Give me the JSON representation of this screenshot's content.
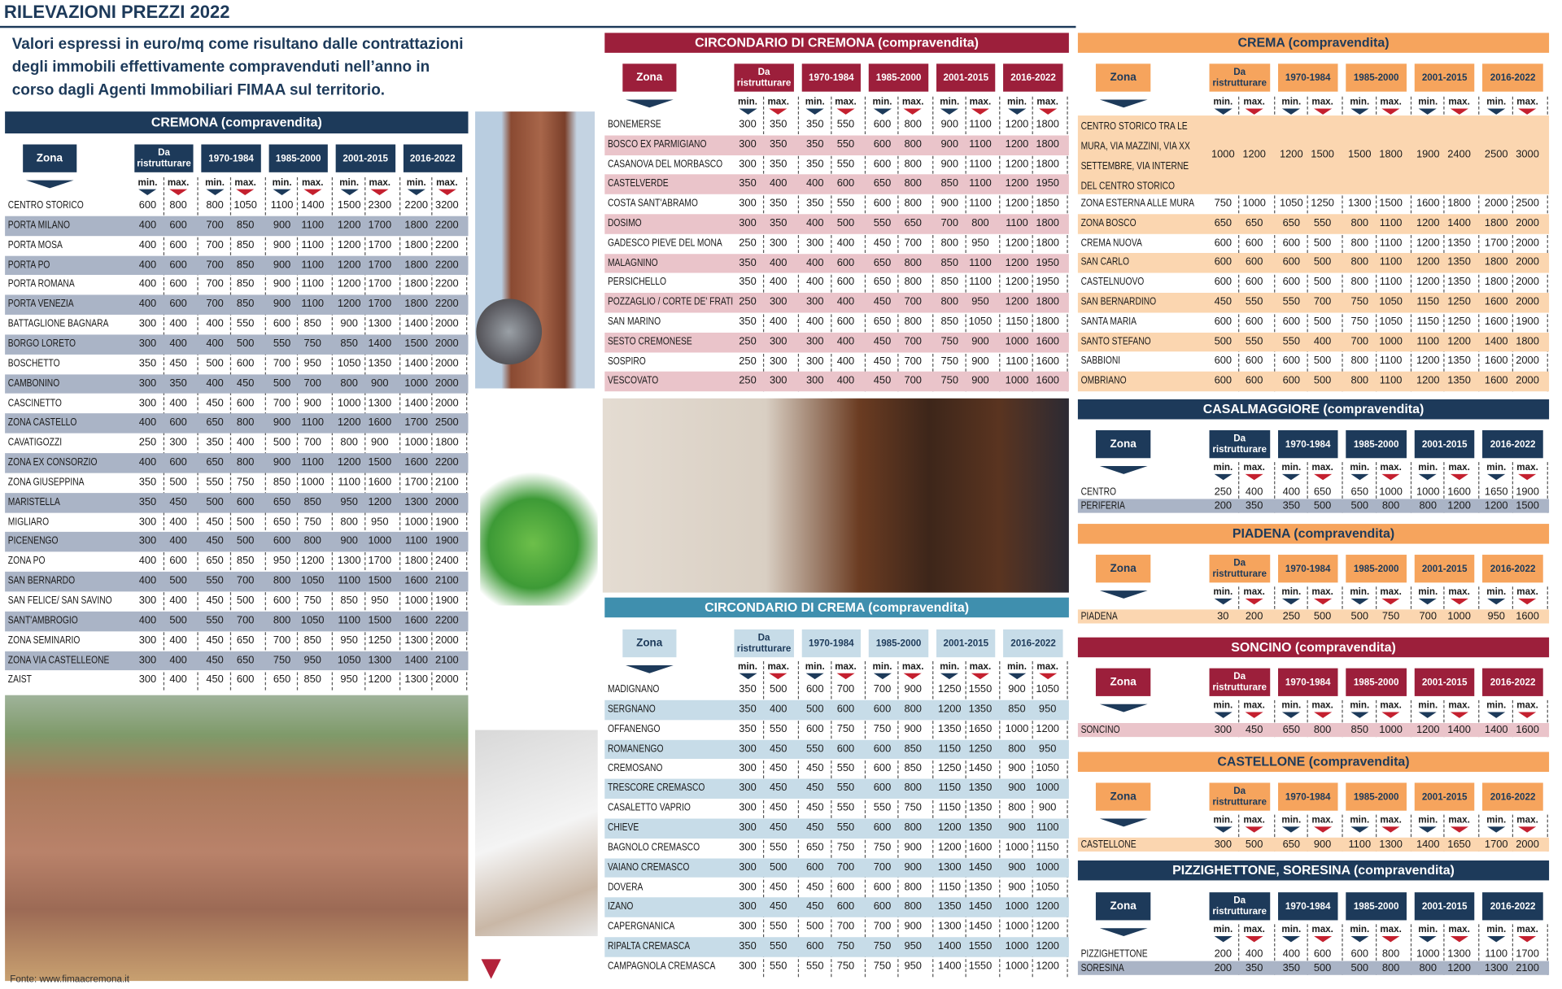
{
  "header": {
    "title": "RILEVAZIONI PREZZI 2022",
    "intro": "Valori espressi in euro/mq come risultano dalle contrattazioni degli immobili effettivamente compravenduti nell’anno in corso dagli Agenti Immobiliari FIMAA sul territorio."
  },
  "columns": {
    "zona": "Zona",
    "periods": [
      "Da ristrutturare",
      "1970-1984",
      "1985-2000",
      "2001-2015",
      "2016-2022"
    ],
    "min": "min.",
    "max": "max."
  },
  "tables": [
    {
      "title": "CREMONA (compravendita)",
      "rows": [
        [
          "CENTRO STORICO",
          600,
          800,
          800,
          1050,
          1100,
          1400,
          1500,
          2300,
          2200,
          3200
        ],
        [
          "PORTA MILANO",
          400,
          600,
          700,
          850,
          900,
          1100,
          1200,
          1700,
          1800,
          2200
        ],
        [
          "PORTA MOSA",
          400,
          600,
          700,
          850,
          900,
          1100,
          1200,
          1700,
          1800,
          2200
        ],
        [
          "PORTA PO",
          400,
          600,
          700,
          850,
          900,
          1100,
          1200,
          1700,
          1800,
          2200
        ],
        [
          "PORTA ROMANA",
          400,
          600,
          700,
          850,
          900,
          1100,
          1200,
          1700,
          1800,
          2200
        ],
        [
          "PORTA VENEZIA",
          400,
          600,
          700,
          850,
          900,
          1100,
          1200,
          1700,
          1800,
          2200
        ],
        [
          "BATTAGLIONE BAGNARA",
          300,
          400,
          400,
          550,
          600,
          850,
          900,
          1300,
          1400,
          2000
        ],
        [
          "BORGO LORETO",
          300,
          400,
          400,
          500,
          550,
          750,
          850,
          1400,
          1500,
          2000
        ],
        [
          "BOSCHETTO",
          350,
          450,
          500,
          600,
          700,
          950,
          1050,
          1350,
          1400,
          2000
        ],
        [
          "CAMBONINO",
          300,
          350,
          400,
          450,
          500,
          700,
          800,
          900,
          1000,
          2000
        ],
        [
          "CASCINETTO",
          300,
          400,
          450,
          600,
          700,
          900,
          1000,
          1300,
          1400,
          2000
        ],
        [
          "ZONA CASTELLO",
          400,
          600,
          650,
          800,
          900,
          1100,
          1200,
          1600,
          1700,
          2500
        ],
        [
          "CAVATIGOZZI",
          250,
          300,
          350,
          400,
          500,
          700,
          800,
          900,
          1000,
          1800
        ],
        [
          "ZONA EX CONSORZIO",
          400,
          600,
          650,
          800,
          900,
          1100,
          1200,
          1500,
          1600,
          2200
        ],
        [
          "ZONA GIUSEPPINA",
          350,
          500,
          550,
          750,
          850,
          1000,
          1100,
          1600,
          1700,
          2100
        ],
        [
          "MARISTELLA",
          350,
          450,
          500,
          600,
          650,
          850,
          950,
          1200,
          1300,
          2000
        ],
        [
          "MIGLIARO",
          300,
          400,
          450,
          500,
          650,
          750,
          800,
          950,
          1000,
          1900
        ],
        [
          "PICENENGO",
          300,
          400,
          450,
          500,
          600,
          800,
          900,
          1000,
          1100,
          1900
        ],
        [
          "ZONA PO",
          400,
          600,
          650,
          850,
          950,
          1200,
          1300,
          1700,
          1800,
          2400
        ],
        [
          "SAN BERNARDO",
          400,
          500,
          550,
          700,
          800,
          1050,
          1100,
          1500,
          1600,
          2100
        ],
        [
          "SAN FELICE/ SAN SAVINO",
          300,
          400,
          450,
          500,
          600,
          750,
          850,
          950,
          1000,
          1900
        ],
        [
          "SANT'AMBROGIO",
          400,
          500,
          550,
          700,
          800,
          1050,
          1100,
          1500,
          1600,
          2200
        ],
        [
          "ZONA SEMINARIO",
          300,
          400,
          450,
          650,
          700,
          850,
          950,
          1250,
          1300,
          2000
        ],
        [
          "ZONA VIA CASTELLEONE",
          300,
          400,
          450,
          650,
          750,
          950,
          1050,
          1300,
          1400,
          2100
        ],
        [
          "ZAIST",
          300,
          400,
          450,
          600,
          650,
          850,
          950,
          1200,
          1300,
          2000
        ]
      ]
    },
    {
      "title": "CIRCONDARIO DI CREMONA (compravendita)",
      "rows": [
        [
          "BONEMERSE",
          300,
          350,
          350,
          550,
          600,
          800,
          900,
          1100,
          1200,
          1800
        ],
        [
          "BOSCO EX PARMIGIANO",
          300,
          350,
          350,
          550,
          600,
          800,
          900,
          1100,
          1200,
          1800
        ],
        [
          "CASANOVA DEL MORBASCO",
          300,
          350,
          350,
          550,
          600,
          800,
          900,
          1100,
          1200,
          1800
        ],
        [
          "CASTELVERDE",
          350,
          400,
          400,
          600,
          650,
          800,
          850,
          1100,
          1200,
          1950
        ],
        [
          "COSTA SANT'ABRAMO",
          300,
          350,
          350,
          550,
          600,
          800,
          900,
          1100,
          1200,
          1850
        ],
        [
          "DOSIMO",
          300,
          350,
          400,
          500,
          550,
          650,
          700,
          800,
          1100,
          1800
        ],
        [
          "GADESCO PIEVE DEL MONA",
          250,
          300,
          300,
          400,
          450,
          700,
          800,
          950,
          1200,
          1800
        ],
        [
          "MALAGNINO",
          350,
          400,
          400,
          600,
          650,
          800,
          850,
          1100,
          1200,
          1950
        ],
        [
          "PERSICHELLO",
          350,
          400,
          400,
          600,
          650,
          800,
          850,
          1100,
          1200,
          1950
        ],
        [
          "POZZAGLIO / CORTE DE' FRATI",
          250,
          300,
          300,
          400,
          450,
          700,
          800,
          950,
          1200,
          1800
        ],
        [
          "SAN MARINO",
          350,
          400,
          400,
          600,
          650,
          800,
          850,
          1050,
          1150,
          1800
        ],
        [
          "SESTO CREMONESE",
          250,
          300,
          300,
          400,
          450,
          700,
          750,
          900,
          1000,
          1600
        ],
        [
          "SOSPIRO",
          250,
          300,
          300,
          400,
          450,
          700,
          750,
          900,
          1100,
          1600
        ],
        [
          "VESCOVATO",
          250,
          300,
          300,
          400,
          450,
          700,
          750,
          900,
          1000,
          1600
        ]
      ]
    },
    {
      "title": "CIRCONDARIO DI CREMA (compravendita)",
      "rows": [
        [
          "MADIGNANO",
          350,
          500,
          600,
          700,
          700,
          900,
          1250,
          1550,
          900,
          1050
        ],
        [
          "SERGNANO",
          350,
          400,
          500,
          600,
          600,
          800,
          1200,
          1350,
          850,
          950
        ],
        [
          "OFFANENGO",
          350,
          550,
          600,
          750,
          750,
          900,
          1350,
          1650,
          1000,
          1200
        ],
        [
          "ROMANENGO",
          300,
          450,
          550,
          600,
          600,
          850,
          1150,
          1250,
          800,
          950
        ],
        [
          "CREMOSANO",
          300,
          450,
          450,
          550,
          600,
          850,
          1250,
          1450,
          900,
          1050
        ],
        [
          "TRESCORE CREMASCO",
          300,
          450,
          450,
          550,
          600,
          800,
          1150,
          1350,
          900,
          1000
        ],
        [
          "CASALETTO VAPRIO",
          300,
          450,
          450,
          550,
          550,
          750,
          1150,
          1350,
          800,
          900
        ],
        [
          "CHIEVE",
          300,
          450,
          450,
          550,
          600,
          800,
          1200,
          1350,
          900,
          1100
        ],
        [
          "BAGNOLO CREMASCO",
          300,
          550,
          650,
          750,
          750,
          900,
          1200,
          1600,
          1000,
          1150
        ],
        [
          "VAIANO CREMASCO",
          300,
          500,
          600,
          700,
          700,
          900,
          1300,
          1450,
          900,
          1000
        ],
        [
          "DOVERA",
          300,
          450,
          450,
          600,
          600,
          800,
          1150,
          1350,
          900,
          1050
        ],
        [
          "IZANO",
          300,
          450,
          450,
          600,
          600,
          800,
          1350,
          1450,
          1000,
          1200
        ],
        [
          "CAPERGNANICA",
          300,
          550,
          500,
          700,
          700,
          900,
          1300,
          1450,
          1000,
          1200
        ],
        [
          "RIPALTA CREMASCA",
          350,
          550,
          600,
          750,
          750,
          950,
          1400,
          1550,
          1000,
          1200
        ],
        [
          "CAMPAGNOLA CREMASCA",
          300,
          550,
          550,
          750,
          750,
          950,
          1400,
          1550,
          1000,
          1200
        ]
      ]
    },
    {
      "title": "CREMA (compravendita)",
      "rows": [
        [
          "CENTRO STORICO TRA LE MURA, VIA MAZZINI, VIA XX SETTEMBRE, VIA INTERNE DEL CENTRO STORICO",
          1000,
          1200,
          1200,
          1500,
          1500,
          1800,
          1900,
          2400,
          2500,
          3000
        ],
        [
          "ZONA ESTERNA ALLE MURA",
          750,
          1000,
          1050,
          1250,
          1300,
          1500,
          1600,
          1800,
          2000,
          2500
        ],
        [
          "ZONA BOSCO",
          650,
          650,
          650,
          550,
          800,
          1100,
          1200,
          1400,
          1800,
          2000
        ],
        [
          "CREMA NUOVA",
          600,
          600,
          600,
          500,
          800,
          1100,
          1200,
          1350,
          1700,
          2000
        ],
        [
          "SAN CARLO",
          600,
          600,
          600,
          500,
          800,
          1100,
          1200,
          1350,
          1800,
          2000
        ],
        [
          "CASTELNUOVO",
          600,
          600,
          600,
          500,
          800,
          1100,
          1200,
          1350,
          1800,
          2000
        ],
        [
          "SAN BERNARDINO",
          450,
          550,
          550,
          700,
          750,
          1050,
          1150,
          1250,
          1600,
          2000
        ],
        [
          "SANTA MARIA",
          600,
          600,
          600,
          500,
          750,
          1050,
          1150,
          1250,
          1600,
          1900
        ],
        [
          "SANTO STEFANO",
          500,
          550,
          550,
          400,
          700,
          1000,
          1100,
          1200,
          1400,
          1800
        ],
        [
          "SABBIONI",
          600,
          600,
          600,
          500,
          800,
          1100,
          1200,
          1350,
          1600,
          2000
        ],
        [
          "OMBRIANO",
          600,
          600,
          600,
          500,
          800,
          1100,
          1200,
          1350,
          1600,
          2000
        ]
      ]
    },
    {
      "title": "CASALMAGGIORE (compravendita)",
      "rows": [
        [
          "CENTRO",
          250,
          400,
          400,
          650,
          650,
          1000,
          1000,
          1600,
          1650,
          1900
        ],
        [
          "PERIFERIA",
          200,
          350,
          350,
          500,
          500,
          800,
          800,
          1200,
          1200,
          1500
        ]
      ]
    },
    {
      "title": "PIADENA (compravendita)",
      "rows": [
        [
          "PIADENA",
          30,
          200,
          250,
          500,
          500,
          750,
          700,
          1000,
          950,
          1600
        ]
      ]
    },
    {
      "title": "SONCINO (compravendita)",
      "rows": [
        [
          "SONCINO",
          300,
          450,
          650,
          800,
          850,
          1000,
          1200,
          1400,
          1400,
          1600
        ]
      ]
    },
    {
      "title": "CASTELLONE (compravendita)",
      "rows": [
        [
          "CASTELLONE",
          300,
          500,
          650,
          900,
          1100,
          1300,
          1400,
          1650,
          1700,
          2000
        ]
      ]
    },
    {
      "title": "PIZZIGHETTONE, SORESINA (compravendita)",
      "rows": [
        [
          "PIZZIGHETTONE",
          200,
          400,
          400,
          600,
          600,
          800,
          1000,
          1300,
          1100,
          1700
        ],
        [
          "SORESINA",
          200,
          350,
          350,
          500,
          500,
          800,
          800,
          1200,
          1300,
          2100
        ]
      ]
    }
  ],
  "source": "Fonte: www.fimaacremona.it"
}
